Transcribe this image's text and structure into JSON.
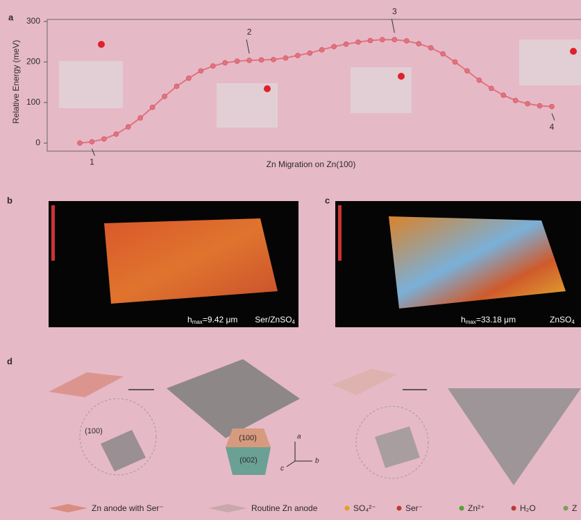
{
  "chart_data": {
    "type": "line",
    "y_label": "Relative Energy (meV)",
    "x_label": "Zn Migration on Zn(100)",
    "values": [
      0,
      3,
      10,
      22,
      40,
      62,
      88,
      115,
      140,
      160,
      178,
      190,
      198,
      202,
      204,
      205,
      206,
      210,
      216,
      222,
      230,
      238,
      244,
      249,
      253,
      255,
      255,
      252,
      245,
      235,
      220,
      200,
      178,
      155,
      135,
      118,
      105,
      97,
      92,
      90
    ],
    "color": "#e2727d",
    "ylim": [
      -20,
      305
    ],
    "yticks": [
      0,
      100,
      200,
      300
    ],
    "annotations": [
      {
        "text": "1",
        "index": 1
      },
      {
        "text": "2",
        "index": 14
      },
      {
        "text": "3",
        "index": 26
      },
      {
        "text": "4",
        "index": 39
      }
    ]
  },
  "panels": {
    "a": "a",
    "b": "b",
    "c": "c",
    "d": "d"
  },
  "panel_b": {
    "h": "h",
    "sub": "max",
    "rest": "=9.42 μm",
    "electrolyte": "Ser/ZnSO",
    "electrolyte_sub": "4"
  },
  "panel_c": {
    "h": "h",
    "sub": "max",
    "rest": "=33.18 μm",
    "electrolyte": "ZnSO",
    "electrolyte_sub": "4"
  },
  "panel_d": {
    "facet_left": "(100)",
    "facet_top": "(100)",
    "facet_bottom": "(002)",
    "axis_a": "a",
    "axis_b": "b",
    "axis_c": "c"
  },
  "legend": [
    "Zn anode with Ser⁻",
    "Routine Zn anode",
    "SO₄²⁻",
    "Ser⁻",
    "Zn²⁺",
    "H₂O",
    "Z"
  ]
}
